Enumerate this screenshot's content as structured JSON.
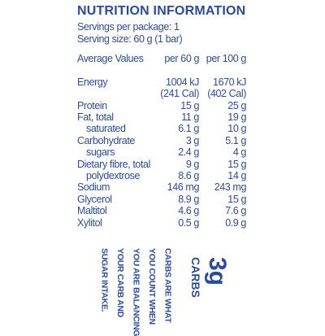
{
  "header": {
    "title": "NUTRITION INFORMATION",
    "servings": "Servings per package: 1",
    "serving_size": "Serving size: 60 g (1 bar)"
  },
  "table": {
    "columns": [
      "Average Values",
      "per 60 g",
      "per 100 g"
    ],
    "rows": [
      [
        "Energy",
        "1004 kJ",
        "1670 kJ"
      ],
      [
        "",
        "(241 Cal)",
        "(402 Cal)"
      ],
      [
        "Protein",
        "15 g",
        "25 g"
      ],
      [
        "Fat, total",
        "11 g",
        "19 g"
      ],
      [
        "saturated",
        "6.1 g",
        "10 g"
      ],
      [
        "Carbohydrate",
        "3 g",
        "5.1 g"
      ],
      [
        "sugars",
        "2.4 g",
        "4 g"
      ],
      [
        "Dietary fibre, total",
        "9 g",
        "15 g"
      ],
      [
        "polydextrose",
        "8.6 g",
        "14 g"
      ],
      [
        "Sodium",
        "146 mg",
        "243 mg"
      ],
      [
        "Glycerol",
        "8.9 g",
        "15 g"
      ],
      [
        "Maltitol",
        "4.6 g",
        "7.6 g"
      ],
      [
        "Xylitol",
        "0.5 g",
        "0.9 g"
      ]
    ]
  },
  "callout": {
    "amount": "3g",
    "label": "CARBS",
    "message": [
      "CARBS ARE WHAT",
      "YOU COUNT WHEN",
      "YOU ARE BALANCING",
      "YOUR CARB AND",
      "SUGAR INTAKE."
    ]
  }
}
